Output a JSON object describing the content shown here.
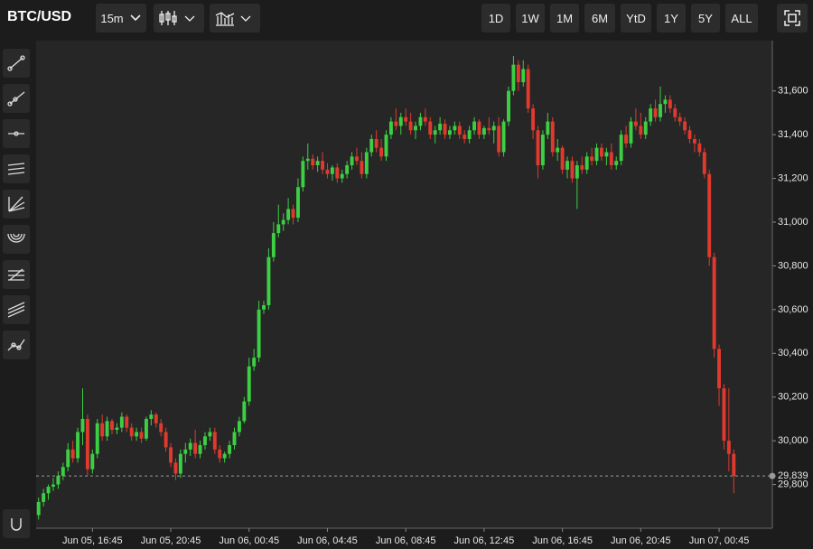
{
  "title": "BTC/USD",
  "interval": "15m",
  "ranges": [
    "1D",
    "1W",
    "1M",
    "6M",
    "YtD",
    "1Y",
    "5Y",
    "ALL"
  ],
  "chart_data": {
    "type": "candlestick",
    "up_color": "#3ccf43",
    "down_color": "#e03a2e",
    "ylim": [
      29600,
      31830
    ],
    "yticks": [
      {
        "value": 29800,
        "label": "29,800"
      },
      {
        "value": 30000,
        "label": "30,000"
      },
      {
        "value": 30200,
        "label": "30,200"
      },
      {
        "value": 30400,
        "label": "30,400"
      },
      {
        "value": 30600,
        "label": "30,600"
      },
      {
        "value": 30800,
        "label": "30,800"
      },
      {
        "value": 31000,
        "label": "31,000"
      },
      {
        "value": 31200,
        "label": "31,200"
      },
      {
        "value": 31400,
        "label": "31,400"
      },
      {
        "value": 31600,
        "label": "31,600"
      }
    ],
    "last_price": {
      "value": 29839,
      "label": "29,839"
    },
    "categories": [
      null,
      null,
      null,
      null,
      null,
      null,
      null,
      null,
      null,
      null,
      null,
      "Jun 05, 16:45",
      null,
      null,
      null,
      null,
      null,
      null,
      null,
      null,
      null,
      null,
      null,
      null,
      null,
      null,
      null,
      "Jun 05, 20:45",
      null,
      null,
      null,
      null,
      null,
      null,
      null,
      null,
      null,
      null,
      null,
      null,
      null,
      null,
      null,
      "Jun 06, 00:45",
      null,
      null,
      null,
      null,
      null,
      null,
      null,
      null,
      null,
      null,
      null,
      null,
      null,
      null,
      null,
      "Jun 06, 04:45",
      null,
      null,
      null,
      null,
      null,
      null,
      null,
      null,
      null,
      null,
      null,
      null,
      null,
      null,
      null,
      "Jun 06, 08:45",
      null,
      null,
      null,
      null,
      null,
      null,
      null,
      null,
      null,
      null,
      null,
      null,
      null,
      null,
      null,
      "Jun 06, 12:45",
      null,
      null,
      null,
      null,
      null,
      null,
      null,
      null,
      null,
      null,
      null,
      null,
      null,
      null,
      null,
      "Jun 06, 16:45",
      null,
      null,
      null,
      null,
      null,
      null,
      null,
      null,
      null,
      null,
      null,
      null,
      null,
      null,
      null,
      "Jun 06, 20:45",
      null,
      null,
      null,
      null,
      null,
      null,
      null,
      null,
      null,
      null,
      null,
      null,
      null,
      null,
      null,
      "Jun 07, 00:45",
      null,
      null,
      null
    ],
    "ohlc": [
      [
        29660,
        29740,
        29640,
        29720
      ],
      [
        29720,
        29780,
        29700,
        29760
      ],
      [
        29760,
        29800,
        29730,
        29790
      ],
      [
        29790,
        29830,
        29770,
        29800
      ],
      [
        29800,
        29860,
        29780,
        29840
      ],
      [
        29840,
        29900,
        29820,
        29880
      ],
      [
        29880,
        29990,
        29860,
        29960
      ],
      [
        29960,
        30000,
        29900,
        29920
      ],
      [
        29920,
        30060,
        29900,
        30040
      ],
      [
        30040,
        30240,
        29980,
        30100
      ],
      [
        30100,
        30120,
        29840,
        29870
      ],
      [
        29870,
        29960,
        29850,
        29940
      ],
      [
        29940,
        30100,
        29920,
        30080
      ],
      [
        30080,
        30120,
        30000,
        30020
      ],
      [
        30020,
        30110,
        30000,
        30090
      ],
      [
        30090,
        30100,
        30030,
        30050
      ],
      [
        30050,
        30080,
        30030,
        30060
      ],
      [
        30060,
        30130,
        30040,
        30110
      ],
      [
        30110,
        30120,
        30040,
        30060
      ],
      [
        30060,
        30080,
        30000,
        30020
      ],
      [
        30020,
        30060,
        30000,
        30040
      ],
      [
        30040,
        30060,
        29990,
        30010
      ],
      [
        30010,
        30110,
        30000,
        30100
      ],
      [
        30100,
        30140,
        30070,
        30120
      ],
      [
        30120,
        30130,
        30060,
        30080
      ],
      [
        30080,
        30100,
        30020,
        30040
      ],
      [
        30040,
        30060,
        29950,
        29970
      ],
      [
        29970,
        29990,
        29880,
        29900
      ],
      [
        29900,
        29920,
        29820,
        29850
      ],
      [
        29850,
        29960,
        29830,
        29940
      ],
      [
        29940,
        29990,
        29900,
        29960
      ],
      [
        29960,
        30010,
        29930,
        29990
      ],
      [
        29990,
        30050,
        29920,
        29940
      ],
      [
        29940,
        30000,
        29920,
        29980
      ],
      [
        29980,
        30040,
        29960,
        30020
      ],
      [
        30020,
        30060,
        30000,
        30040
      ],
      [
        30040,
        30060,
        29940,
        29960
      ],
      [
        29960,
        29980,
        29900,
        29920
      ],
      [
        29920,
        29950,
        29900,
        29940
      ],
      [
        29940,
        30000,
        29920,
        29980
      ],
      [
        29980,
        30060,
        29960,
        30040
      ],
      [
        30040,
        30110,
        30020,
        30090
      ],
      [
        30090,
        30200,
        30080,
        30180
      ],
      [
        30180,
        30380,
        30160,
        30340
      ],
      [
        30340,
        30420,
        30320,
        30380
      ],
      [
        30380,
        30640,
        30360,
        30600
      ],
      [
        30600,
        30640,
        30580,
        30620
      ],
      [
        30620,
        30880,
        30600,
        30840
      ],
      [
        30840,
        31000,
        30820,
        30950
      ],
      [
        30950,
        31080,
        30930,
        30990
      ],
      [
        30990,
        31040,
        30960,
        31010
      ],
      [
        31010,
        31110,
        30990,
        31060
      ],
      [
        31060,
        31080,
        30990,
        31020
      ],
      [
        31020,
        31200,
        31000,
        31160
      ],
      [
        31160,
        31300,
        31140,
        31280
      ],
      [
        31280,
        31360,
        31240,
        31290
      ],
      [
        31290,
        31310,
        31240,
        31260
      ],
      [
        31260,
        31300,
        31230,
        31280
      ],
      [
        31280,
        31320,
        31220,
        31240
      ],
      [
        31240,
        31270,
        31200,
        31220
      ],
      [
        31220,
        31260,
        31190,
        31250
      ],
      [
        31250,
        31270,
        31180,
        31200
      ],
      [
        31200,
        31240,
        31180,
        31220
      ],
      [
        31220,
        31280,
        31200,
        31260
      ],
      [
        31260,
        31320,
        31240,
        31300
      ],
      [
        31300,
        31340,
        31260,
        31280
      ],
      [
        31280,
        31320,
        31200,
        31220
      ],
      [
        31220,
        31340,
        31200,
        31320
      ],
      [
        31320,
        31400,
        31300,
        31380
      ],
      [
        31380,
        31420,
        31320,
        31340
      ],
      [
        31340,
        31380,
        31280,
        31300
      ],
      [
        31300,
        31420,
        31280,
        31400
      ],
      [
        31400,
        31480,
        31380,
        31460
      ],
      [
        31460,
        31520,
        31420,
        31440
      ],
      [
        31440,
        31500,
        31400,
        31480
      ],
      [
        31480,
        31520,
        31440,
        31460
      ],
      [
        31460,
        31500,
        31400,
        31420
      ],
      [
        31420,
        31460,
        31380,
        31440
      ],
      [
        31440,
        31500,
        31420,
        31480
      ],
      [
        31480,
        31520,
        31440,
        31460
      ],
      [
        31460,
        31480,
        31380,
        31400
      ],
      [
        31400,
        31440,
        31360,
        31420
      ],
      [
        31420,
        31480,
        31400,
        31450
      ],
      [
        31450,
        31470,
        31380,
        31400
      ],
      [
        31400,
        31440,
        31380,
        31420
      ],
      [
        31420,
        31460,
        31400,
        31440
      ],
      [
        31440,
        31460,
        31380,
        31400
      ],
      [
        31400,
        31420,
        31360,
        31380
      ],
      [
        31380,
        31440,
        31360,
        31420
      ],
      [
        31420,
        31480,
        31400,
        31460
      ],
      [
        31460,
        31470,
        31380,
        31400
      ],
      [
        31400,
        31440,
        31380,
        31430
      ],
      [
        31430,
        31480,
        31400,
        31420
      ],
      [
        31420,
        31460,
        31360,
        31440
      ],
      [
        31440,
        31480,
        31300,
        31320
      ],
      [
        31320,
        31470,
        31300,
        31460
      ],
      [
        31460,
        31620,
        31440,
        31600
      ],
      [
        31600,
        31760,
        31580,
        31720
      ],
      [
        31720,
        31740,
        31600,
        31640
      ],
      [
        31640,
        31740,
        31620,
        31700
      ],
      [
        31700,
        31720,
        31500,
        31520
      ],
      [
        31520,
        31540,
        31380,
        31420
      ],
      [
        31420,
        31440,
        31200,
        31260
      ],
      [
        31260,
        31420,
        31240,
        31400
      ],
      [
        31400,
        31500,
        31380,
        31460
      ],
      [
        31460,
        31480,
        31300,
        31320
      ],
      [
        31320,
        31380,
        31280,
        31340
      ],
      [
        31340,
        31350,
        31220,
        31240
      ],
      [
        31240,
        31300,
        31200,
        31280
      ],
      [
        31280,
        31300,
        31180,
        31200
      ],
      [
        31200,
        31280,
        31060,
        31260
      ],
      [
        31260,
        31300,
        31220,
        31240
      ],
      [
        31240,
        31320,
        31220,
        31300
      ],
      [
        31300,
        31340,
        31260,
        31280
      ],
      [
        31280,
        31360,
        31260,
        31340
      ],
      [
        31340,
        31360,
        31280,
        31300
      ],
      [
        31300,
        31340,
        31260,
        31320
      ],
      [
        31320,
        31360,
        31240,
        31260
      ],
      [
        31260,
        31300,
        31240,
        31280
      ],
      [
        31280,
        31420,
        31260,
        31400
      ],
      [
        31400,
        31440,
        31340,
        31360
      ],
      [
        31360,
        31480,
        31340,
        31460
      ],
      [
        31460,
        31520,
        31420,
        31440
      ],
      [
        31440,
        31500,
        31380,
        31400
      ],
      [
        31400,
        31480,
        31380,
        31460
      ],
      [
        31460,
        31540,
        31440,
        31520
      ],
      [
        31520,
        31560,
        31460,
        31480
      ],
      [
        31480,
        31620,
        31460,
        31540
      ],
      [
        31540,
        31580,
        31500,
        31560
      ],
      [
        31560,
        31580,
        31500,
        31520
      ],
      [
        31520,
        31540,
        31460,
        31480
      ],
      [
        31480,
        31500,
        31440,
        31460
      ],
      [
        31460,
        31480,
        31400,
        31420
      ],
      [
        31420,
        31440,
        31360,
        31380
      ],
      [
        31380,
        31400,
        31320,
        31360
      ],
      [
        31360,
        31380,
        31300,
        31320
      ],
      [
        31320,
        31340,
        31200,
        31220
      ],
      [
        31220,
        31240,
        30800,
        30840
      ],
      [
        30840,
        30860,
        30380,
        30420
      ],
      [
        30420,
        30440,
        30160,
        30240
      ],
      [
        30240,
        30260,
        29960,
        30000
      ],
      [
        30000,
        30240,
        29860,
        29940
      ],
      [
        29940,
        29960,
        29760,
        29839
      ]
    ]
  }
}
